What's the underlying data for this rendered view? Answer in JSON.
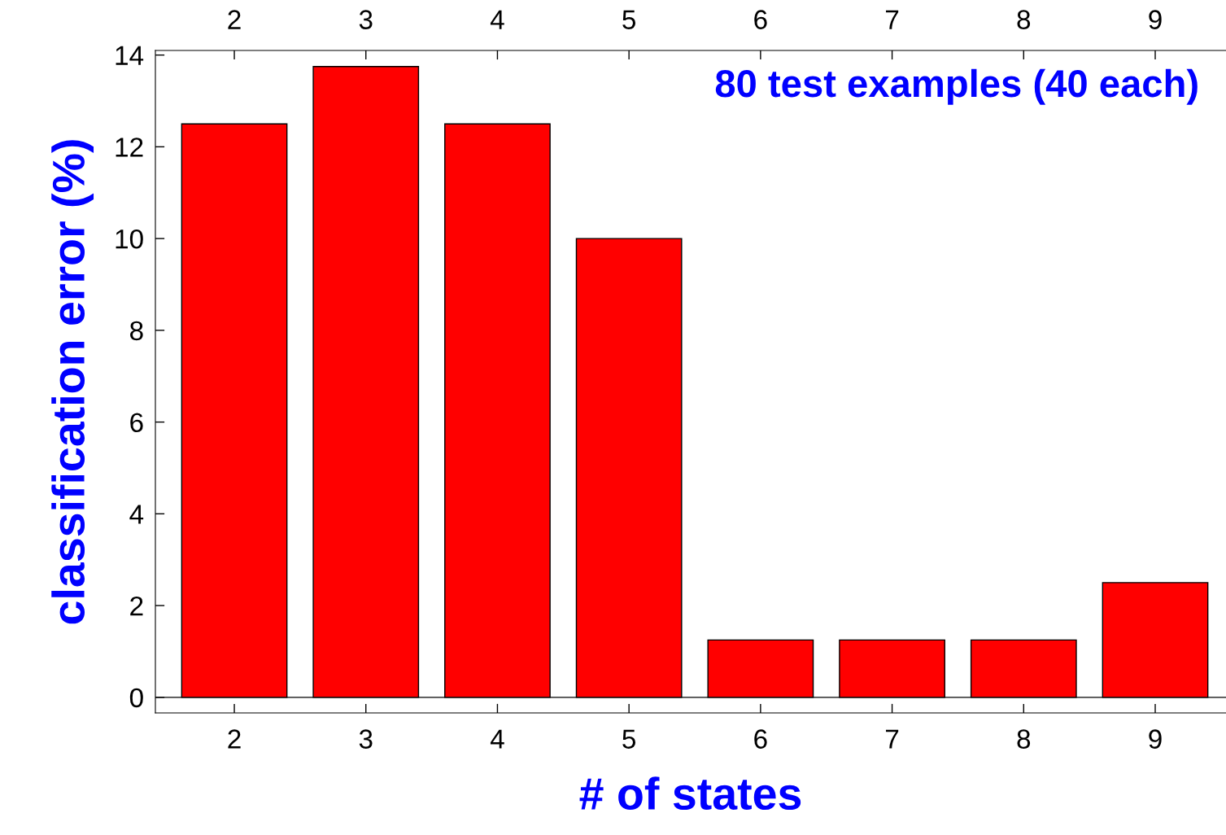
{
  "chart_data": {
    "type": "bar",
    "xlabel": "# of states",
    "ylabel": "classification error (%)",
    "annotations": [
      "80 test examples (40 each)"
    ],
    "categories": [
      "2",
      "3",
      "4",
      "5",
      "6",
      "7",
      "8",
      "9"
    ],
    "values": [
      12.5,
      13.75,
      12.5,
      10,
      1.25,
      1.25,
      1.25,
      2.5
    ],
    "color": "#ff0000",
    "ylim": [
      -0.34,
      14.1
    ],
    "yticks": [
      0,
      2,
      4,
      6,
      8,
      10,
      12,
      14
    ],
    "ref_lines": [
      {
        "axis": "y",
        "value": 0,
        "color": "#000000"
      }
    ],
    "grid": false,
    "legend": false
  }
}
